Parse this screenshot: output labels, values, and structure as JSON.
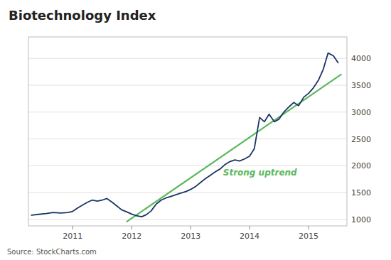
{
  "chart_data": {
    "type": "line",
    "title": "Biotechnology Index",
    "source": "Source: StockCharts.com",
    "annotations": [
      {
        "text": "Strong uptrend",
        "x": 2013.55,
        "y": 1820,
        "color": "#5ab85c"
      }
    ],
    "xlim": [
      2010.25,
      2015.65
    ],
    "xticks": [
      2011,
      2012,
      2013,
      2014,
      2015
    ],
    "ylim": [
      880,
      4400
    ],
    "yticks": [
      1000,
      1500,
      2000,
      2500,
      3000,
      3500,
      4000
    ],
    "grid": true,
    "series": [
      {
        "color": "#1a3565",
        "x": [
          2010.3,
          2010.42,
          2010.55,
          2010.67,
          2010.8,
          2010.92,
          2011.0,
          2011.08,
          2011.17,
          2011.25,
          2011.33,
          2011.42,
          2011.5,
          2011.58,
          2011.67,
          2011.75,
          2011.83,
          2011.92,
          2012.0,
          2012.08,
          2012.17,
          2012.25,
          2012.33,
          2012.42,
          2012.5,
          2012.58,
          2012.67,
          2012.75,
          2012.83,
          2012.92,
          2013.0,
          2013.08,
          2013.17,
          2013.25,
          2013.33,
          2013.42,
          2013.5,
          2013.58,
          2013.67,
          2013.75,
          2013.83,
          2013.92,
          2014.0,
          2014.08,
          2014.17,
          2014.25,
          2014.33,
          2014.42,
          2014.5,
          2014.58,
          2014.67,
          2014.75,
          2014.83,
          2014.92,
          2015.0,
          2015.08,
          2015.17,
          2015.25,
          2015.33,
          2015.42,
          2015.5
        ],
        "values": [
          1080,
          1095,
          1110,
          1130,
          1120,
          1130,
          1150,
          1210,
          1270,
          1320,
          1360,
          1340,
          1360,
          1390,
          1320,
          1250,
          1180,
          1140,
          1100,
          1070,
          1050,
          1090,
          1160,
          1290,
          1360,
          1400,
          1430,
          1460,
          1490,
          1520,
          1560,
          1610,
          1690,
          1760,
          1820,
          1890,
          1940,
          2020,
          2080,
          2110,
          2090,
          2130,
          2180,
          2320,
          2900,
          2820,
          2960,
          2820,
          2870,
          3000,
          3100,
          3180,
          3120,
          3280,
          3350,
          3450,
          3600,
          3800,
          4100,
          4050,
          3920
        ]
      },
      {
        "color": "#5ab85c",
        "x": [
          2011.92,
          2015.55
        ],
        "values": [
          960,
          3700
        ]
      }
    ]
  }
}
